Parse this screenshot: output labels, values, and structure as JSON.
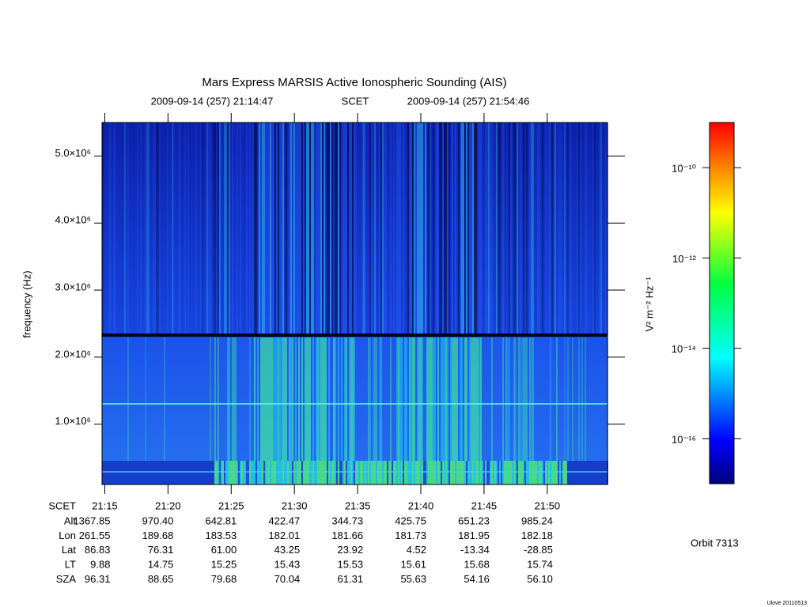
{
  "chart_data": {
    "type": "spectrogram",
    "title": "Mars Express MARSIS Active Ionospheric Sounding (AIS)",
    "subtitle": [
      "2009-09-14 (257) 21:14:47",
      "SCET",
      "2009-09-14 (257) 21:54:46"
    ],
    "y_label": "frequency (Hz)",
    "ylim": [
      100000,
      5500000
    ],
    "yticks": [
      {
        "value": 1000000,
        "label": "1.0×10⁶"
      },
      {
        "value": 2000000,
        "label": "2.0×10⁶"
      },
      {
        "value": 3000000,
        "label": "3.0×10⁶"
      },
      {
        "value": 4000000,
        "label": "4.0×10⁶"
      },
      {
        "value": 5000000,
        "label": "5.0×10⁶"
      }
    ],
    "xlim": [
      "21:14:47",
      "21:54:46"
    ],
    "x_label": "SCET",
    "xticks": [
      "21:15",
      "21:20",
      "21:25",
      "21:30",
      "21:35",
      "21:40",
      "21:45",
      "21:50"
    ],
    "ephemeris": [
      {
        "label": "Alt",
        "values": [
          "1367.85",
          "970.40",
          "642.81",
          "422.47",
          "344.73",
          "425.75",
          "651.23",
          "985.24"
        ]
      },
      {
        "label": "Lon",
        "values": [
          "261.55",
          "189.68",
          "183.53",
          "182.01",
          "181.66",
          "181.73",
          "181.95",
          "182.18"
        ]
      },
      {
        "label": "Lat",
        "values": [
          "86.83",
          "76.31",
          "61.00",
          "43.25",
          "23.92",
          "4.52",
          "-13.34",
          "-28.85"
        ]
      },
      {
        "label": "LT",
        "values": [
          "9.88",
          "14.75",
          "15.25",
          "15.43",
          "15.53",
          "15.61",
          "15.68",
          "15.74"
        ]
      },
      {
        "label": "SZA",
        "values": [
          "96.31",
          "88.65",
          "79.68",
          "70.04",
          "61.31",
          "55.63",
          "54.16",
          "56.10"
        ]
      }
    ],
    "colorbar": {
      "label": "V² m⁻² Hz⁻¹",
      "log_scale": true,
      "lim": [
        1e-17,
        1e-09
      ],
      "ticks": [
        {
          "value": 1e-10,
          "label": "10⁻¹⁰"
        },
        {
          "value": 1e-12,
          "label": "10⁻¹²"
        },
        {
          "value": 1e-14,
          "label": "10⁻¹⁴"
        },
        {
          "value": 1e-16,
          "label": "10⁻¹⁶"
        }
      ]
    },
    "orbit": "Orbit 7313",
    "footer": "Ulove 20110513"
  }
}
